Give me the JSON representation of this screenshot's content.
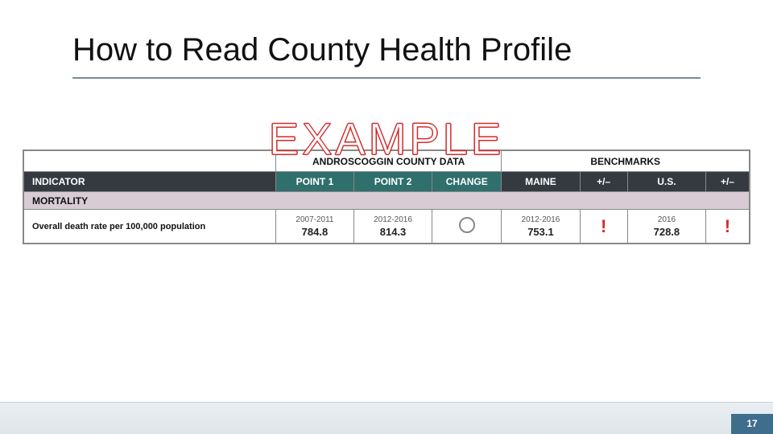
{
  "title": "How to Read County Health Profile",
  "watermark": "EXAMPLE",
  "page_number": "17",
  "table": {
    "county_data_header": "ANDROSCOGGIN COUNTY DATA",
    "benchmarks_header": "BENCHMARKS",
    "columns": {
      "indicator": "INDICATOR",
      "point1": "POINT 1",
      "point2": "POINT 2",
      "change": "CHANGE",
      "maine": "MAINE",
      "pm1": "+/–",
      "us": "U.S.",
      "pm2": "+/–"
    },
    "category": "MORTALITY",
    "row": {
      "indicator": "Overall death rate per 100,000 population",
      "point1_period": "2007-2011",
      "point1_value": "784.8",
      "point2_period": "2012-2016",
      "point2_value": "814.3",
      "change_symbol": "circle",
      "maine_period": "2012-2016",
      "maine_value": "753.1",
      "pm1_symbol": "excl",
      "us_period": "2016",
      "us_value": "728.8",
      "pm2_symbol": "excl"
    }
  },
  "colors": {
    "title_underline": "#7b8b94",
    "watermark_stroke": "#d22c2c",
    "hdr_dark": "#353a40",
    "hdr_teal": "#2f6f6c",
    "category_bg": "#d8cbd4",
    "excl": "#d22c2c",
    "footer_bg_top": "#e9eef1",
    "footer_bg_bot": "#dfe6ea",
    "footer_corner": "#3f6e8c"
  }
}
